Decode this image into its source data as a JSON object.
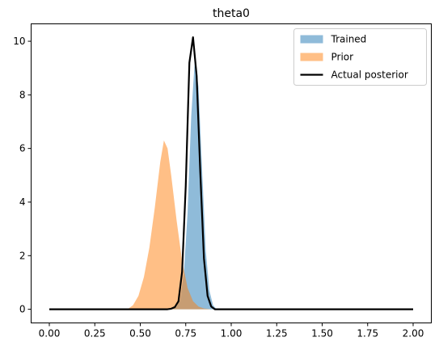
{
  "chart_data": {
    "type": "area",
    "title": "theta0",
    "xlabel": "",
    "ylabel": "",
    "xlim": [
      -0.1,
      2.1
    ],
    "ylim": [
      -0.51,
      10.65
    ],
    "x_ticks": [
      0.0,
      0.25,
      0.5,
      0.75,
      1.0,
      1.25,
      1.5,
      1.75,
      2.0
    ],
    "x_tick_labels": [
      "0.00",
      "0.25",
      "0.50",
      "0.75",
      "1.00",
      "1.25",
      "1.50",
      "1.75",
      "2.00"
    ],
    "y_ticks": [
      0,
      2,
      4,
      6,
      8,
      10
    ],
    "y_tick_labels": [
      "0",
      "2",
      "4",
      "6",
      "8",
      "10"
    ],
    "grid": false,
    "legend_position": "top-right",
    "series": [
      {
        "name": "Trained",
        "kind": "filled",
        "color": "#1f77b4",
        "opacity": 0.5,
        "x": [
          0.0,
          0.66,
          0.68,
          0.7,
          0.72,
          0.74,
          0.76,
          0.78,
          0.8,
          0.82,
          0.84,
          0.86,
          0.88,
          0.9,
          0.92,
          2.0
        ],
        "y": [
          0.0,
          0.0,
          0.02,
          0.1,
          0.4,
          1.4,
          3.6,
          7.2,
          9.3,
          8.3,
          5.2,
          2.2,
          0.7,
          0.15,
          0.0,
          0.0
        ]
      },
      {
        "name": "Prior",
        "kind": "filled",
        "color": "#ff7f0e",
        "opacity": 0.5,
        "x": [
          0.0,
          0.43,
          0.46,
          0.49,
          0.52,
          0.55,
          0.58,
          0.61,
          0.63,
          0.65,
          0.67,
          0.7,
          0.73,
          0.76,
          0.79,
          0.82,
          0.85,
          0.89,
          2.0
        ],
        "y": [
          0.0,
          0.0,
          0.15,
          0.5,
          1.2,
          2.3,
          3.8,
          5.5,
          6.3,
          6.0,
          5.0,
          3.3,
          1.8,
          0.8,
          0.3,
          0.1,
          0.03,
          0.0,
          0.0
        ]
      },
      {
        "name": "Actual posterior",
        "kind": "line",
        "color": "#000000",
        "x": [
          0.0,
          0.65,
          0.67,
          0.69,
          0.71,
          0.73,
          0.75,
          0.77,
          0.79,
          0.81,
          0.83,
          0.85,
          0.87,
          0.89,
          0.91,
          2.0
        ],
        "y": [
          0.0,
          0.0,
          0.02,
          0.08,
          0.3,
          1.4,
          4.6,
          9.2,
          10.15,
          8.7,
          5.1,
          1.9,
          0.5,
          0.1,
          0.0,
          0.0
        ]
      }
    ]
  }
}
